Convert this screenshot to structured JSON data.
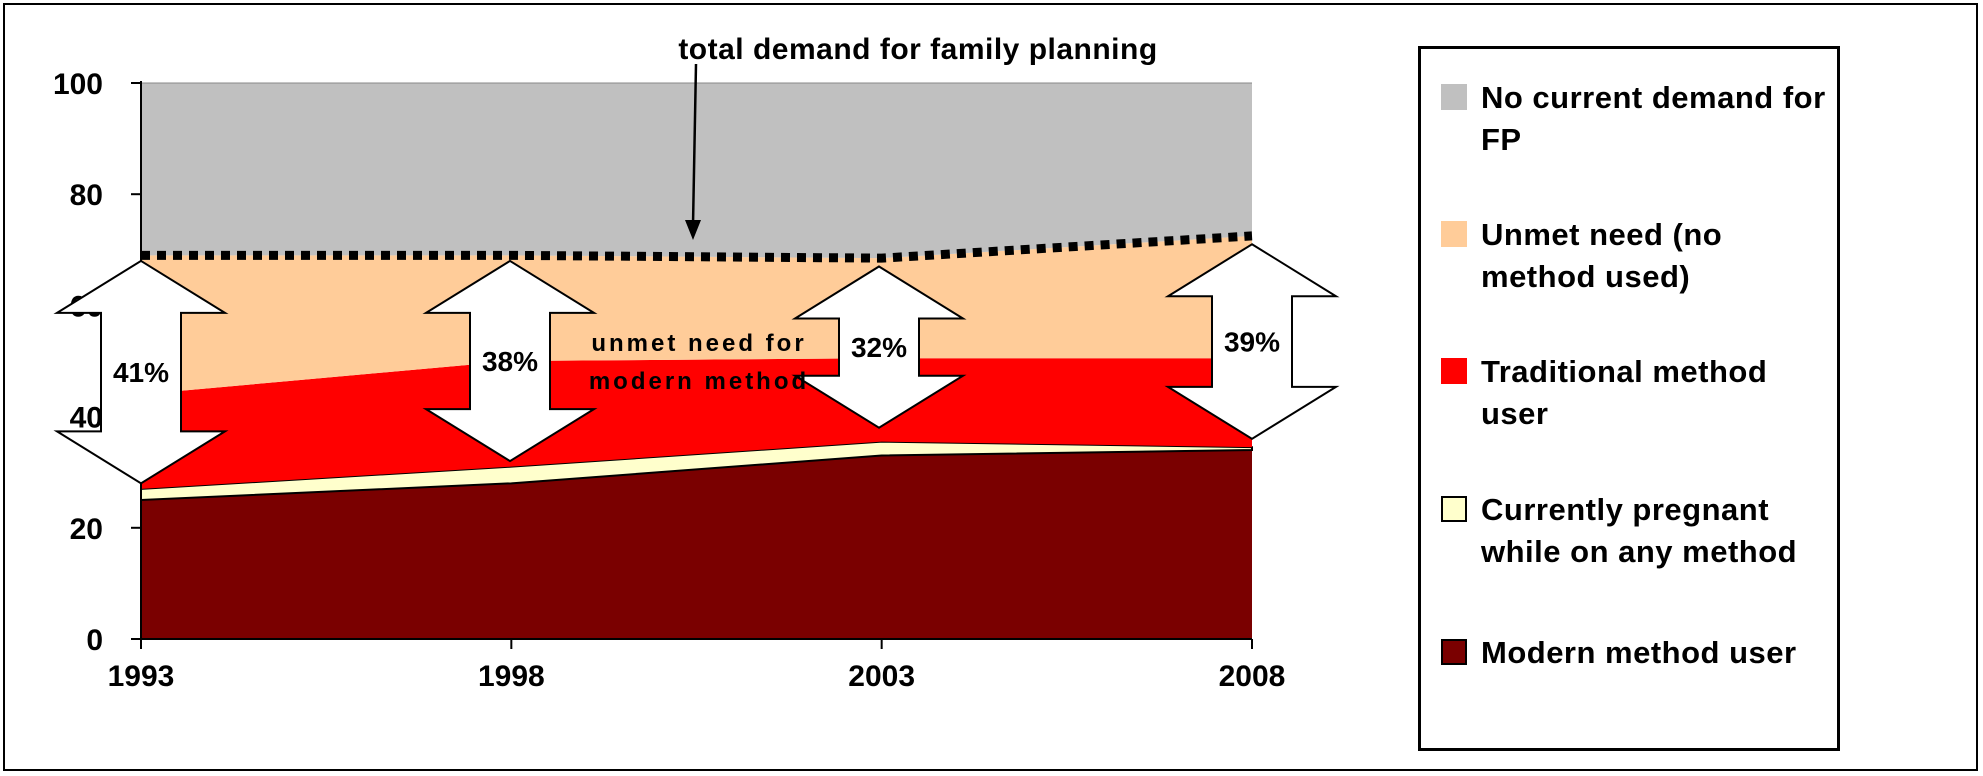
{
  "chart_data": {
    "type": "area",
    "title": "",
    "xlabel": "",
    "ylabel": "",
    "x": [
      "1993",
      "1998",
      "2003",
      "2008"
    ],
    "ylim": [
      0,
      100
    ],
    "yticks": [
      "0",
      "20",
      "40",
      "60",
      "80",
      "100"
    ],
    "grid": false,
    "legend_position": "right",
    "series": [
      {
        "name": "Modern method user",
        "values": [
          25,
          28,
          33,
          34
        ],
        "color": "#7a0000"
      },
      {
        "name": "Currently pregnant while on any method",
        "values": [
          2,
          3,
          2.5,
          0.5
        ],
        "color": "#ffffcc"
      },
      {
        "name": "Traditional method user",
        "values": [
          17,
          19,
          15,
          16
        ],
        "color": "#ff0000"
      },
      {
        "name": "Unmet need (no method used)",
        "values": [
          25,
          19,
          18,
          22
        ],
        "color": "#ffcc99"
      },
      {
        "name": "No current demand for FP",
        "values": [
          31,
          31,
          31.5,
          27.5
        ],
        "color": "#c0c0c0"
      }
    ],
    "total_demand_line": [
      69,
      69,
      68.5,
      72.5
    ],
    "annotations": {
      "total_demand": "total demand for family planning",
      "unmet_modern_line1": "unmet need for",
      "unmet_modern_line2": "modern method"
    },
    "arrow_labels": [
      {
        "x": "1993",
        "label": "41%",
        "from": 28,
        "to": 68
      },
      {
        "x": "1998",
        "label": "38%",
        "from": 32,
        "to": 68
      },
      {
        "x": "2003",
        "label": "32%",
        "from": 38,
        "to": 67
      },
      {
        "x": "2008",
        "label": "39%",
        "from": 36,
        "to": 71
      }
    ]
  }
}
